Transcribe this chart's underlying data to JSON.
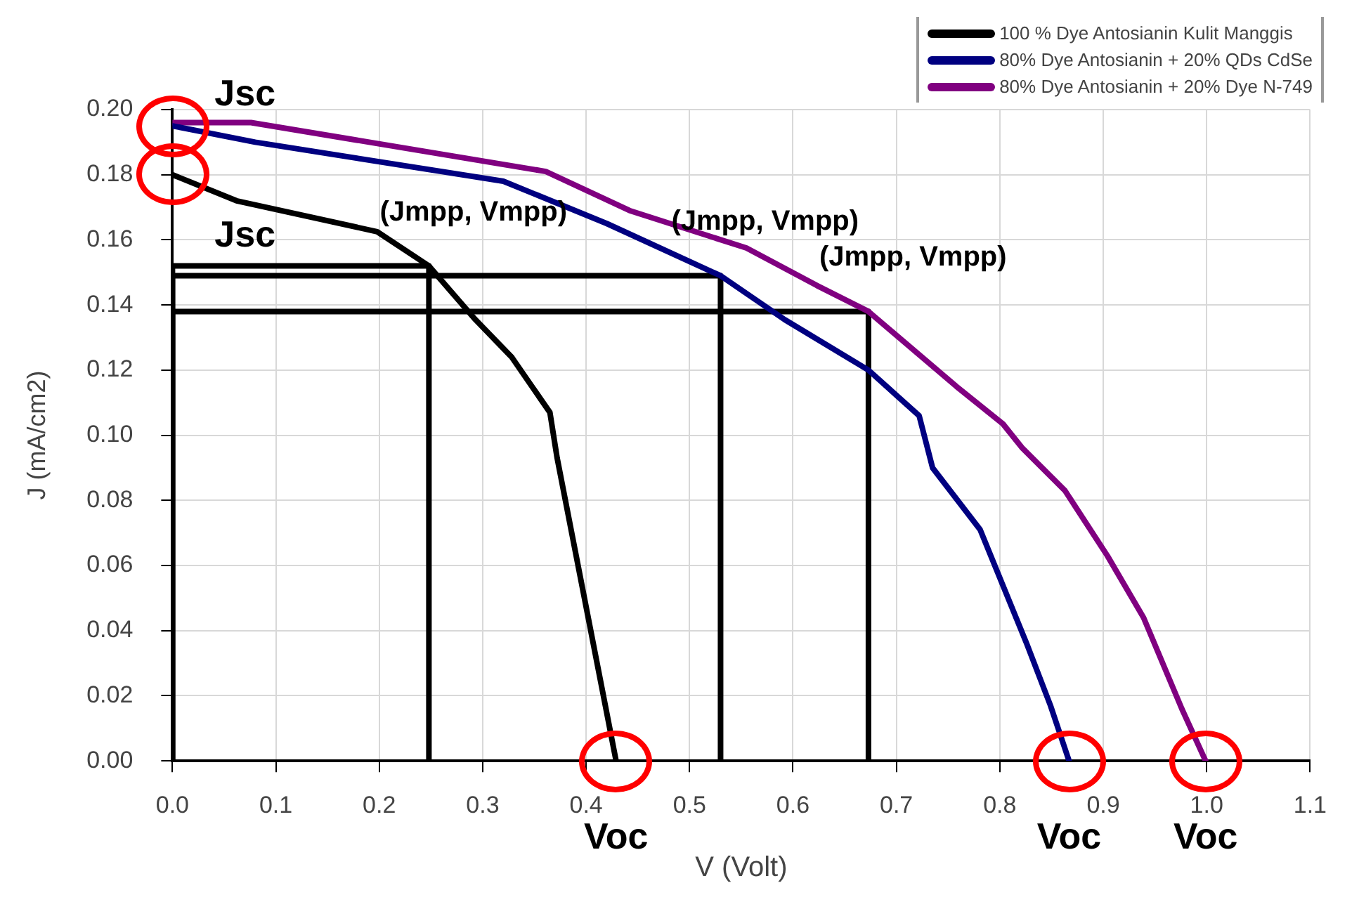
{
  "chart_data": {
    "type": "line",
    "xlabel": "V (Volt)",
    "ylabel": "J (mA/cm2)",
    "xlim": [
      0,
      1.1
    ],
    "ylim": [
      0,
      0.2
    ],
    "xticks": [
      {
        "value": 0,
        "label": "0.0"
      },
      {
        "value": 0.1,
        "label": "0.1"
      },
      {
        "value": 0.2,
        "label": "0.2"
      },
      {
        "value": 0.3,
        "label": "0.3"
      },
      {
        "value": 0.4,
        "label": "0.4"
      },
      {
        "value": 0.5,
        "label": "0.5"
      },
      {
        "value": 0.6,
        "label": "0.6"
      },
      {
        "value": 0.7,
        "label": "0.7"
      },
      {
        "value": 0.8,
        "label": "0.8"
      },
      {
        "value": 0.9,
        "label": "0.9"
      },
      {
        "value": 1,
        "label": "1.0"
      },
      {
        "value": 1.1,
        "label": "1.1"
      }
    ],
    "yticks": [
      {
        "value": 0,
        "label": "0.00"
      },
      {
        "value": 0.02,
        "label": "0.02"
      },
      {
        "value": 0.04,
        "label": "0.04"
      },
      {
        "value": 0.06,
        "label": "0.06"
      },
      {
        "value": 0.08,
        "label": "0.08"
      },
      {
        "value": 0.1,
        "label": "0.10"
      },
      {
        "value": 0.12,
        "label": "0.12"
      },
      {
        "value": 0.14,
        "label": "0.14"
      },
      {
        "value": 0.16,
        "label": "0.16"
      },
      {
        "value": 0.18,
        "label": "0.18"
      },
      {
        "value": 0.2,
        "label": "0.20"
      }
    ],
    "grid": true,
    "legend": "top right",
    "marker": "none",
    "line_style": "solid",
    "series": [
      {
        "name": "100 % Dye Antosianin Kulit Manggis",
        "color": "#000000",
        "x": [
          0,
          0.062,
          0.198,
          0.248,
          0.293,
          0.328,
          0.365,
          0.372,
          0.429
        ],
        "values": [
          0.18,
          0.172,
          0.1625,
          0.152,
          0.1355,
          0.124,
          0.107,
          0.093,
          0
        ]
      },
      {
        "name": "80% Dye Antosianin + 20% QDs CdSe",
        "color": "#000080",
        "x": [
          0,
          0.08,
          0.32,
          0.42,
          0.53,
          0.592,
          0.673,
          0.722,
          0.735,
          0.781,
          0.826,
          0.849,
          0.867
        ],
        "values": [
          0.195,
          0.19,
          0.178,
          0.165,
          0.149,
          0.1355,
          0.12,
          0.106,
          0.09,
          0.071,
          0.036,
          0.017,
          0
        ]
      },
      {
        "name": "80% Dye Antosianin + 20% Dye N-749",
        "color": "#800080",
        "x": [
          0,
          0.076,
          0.361,
          0.442,
          0.555,
          0.623,
          0.673,
          0.758,
          0.803,
          0.822,
          0.863,
          0.904,
          0.939,
          0.976,
          0.999
        ],
        "values": [
          0.196,
          0.196,
          0.181,
          0.169,
          0.1575,
          0.146,
          0.138,
          0.115,
          0.1035,
          0.096,
          0.083,
          0.063,
          0.044,
          0.016,
          0
        ]
      },
      {
        "color": "#000000",
        "x": [
          0,
          0,
          0.248,
          0.248
        ],
        "values": [
          0,
          0.152,
          0.152,
          0
        ]
      },
      {
        "color": "#000000",
        "x": [
          0,
          0,
          0.53,
          0.53
        ],
        "values": [
          0,
          0.149,
          0.149,
          0
        ]
      },
      {
        "color": "#000000",
        "x": [
          0,
          0,
          0.673,
          0.673
        ],
        "values": [
          0,
          0.138,
          0.138,
          0
        ]
      }
    ],
    "annotations": [
      {
        "text": "Jsc",
        "x": 0,
        "y": 0.195
      },
      {
        "text": "Jsc",
        "x": 0,
        "y": 0.18
      },
      {
        "text": "(Jmpp, Vmpp)",
        "x": 0.248,
        "y": 0.152
      },
      {
        "text": "(Jmpp, Vmpp)",
        "x": 0.53,
        "y": 0.149
      },
      {
        "text": "(Jmpp, Vmpp)",
        "x": 0.673,
        "y": 0.138
      },
      {
        "text": "Voc",
        "x": 0.429,
        "y": 0
      },
      {
        "text": "Voc",
        "x": 0.867,
        "y": 0
      },
      {
        "text": "Voc",
        "x": 0.999,
        "y": 0
      }
    ]
  }
}
